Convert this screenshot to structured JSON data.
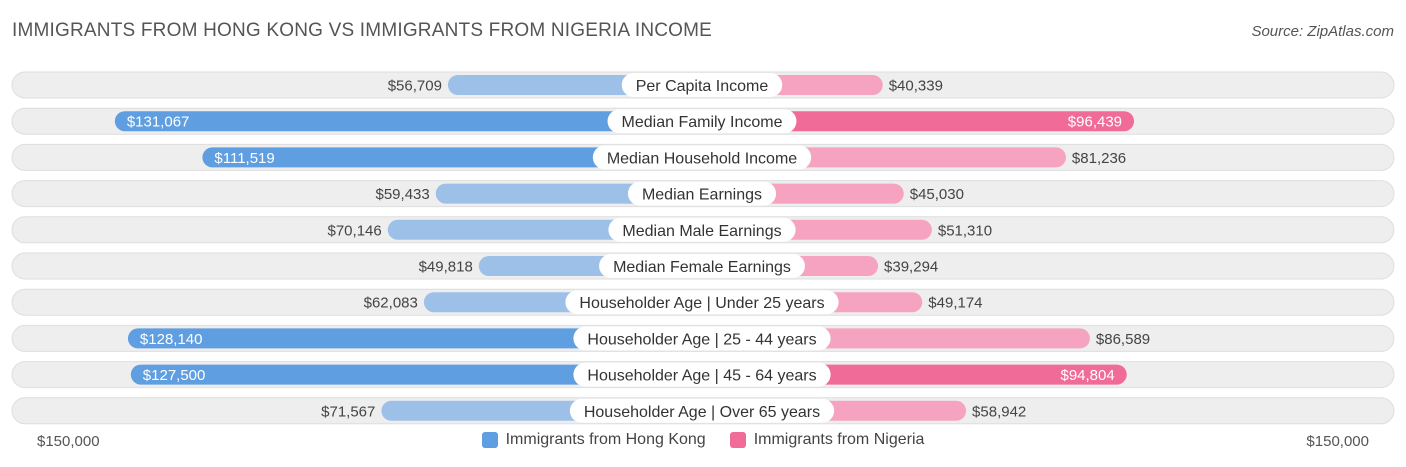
{
  "title": "IMMIGRANTS FROM HONG KONG VS IMMIGRANTS FROM NIGERIA INCOME",
  "source": "Source: ZipAtlas.com",
  "axis": {
    "left_label": "$150,000",
    "right_label": "$150,000"
  },
  "legend": {
    "left": "Immigrants from Hong Kong",
    "right": "Immigrants from Nigeria"
  },
  "colors": {
    "left_light": "#9dc0e8",
    "left_dark": "#5f9ee0",
    "right_light": "#f5a3c0",
    "right_dark": "#f06b98",
    "row_bg": "#eeeeee",
    "row_border": "#dedede"
  },
  "chart_data": {
    "type": "bar",
    "orientation": "horizontal-diverging",
    "max": 150000,
    "categories": [
      "Per Capita Income",
      "Median Family Income",
      "Median Household Income",
      "Median Earnings",
      "Median Male Earnings",
      "Median Female Earnings",
      "Householder Age | Under 25 years",
      "Householder Age | 25 - 44 years",
      "Householder Age | 45 - 64 years",
      "Householder Age | Over 65 years"
    ],
    "series": [
      {
        "name": "Immigrants from Hong Kong",
        "values": [
          56709,
          131067,
          111519,
          59433,
          70146,
          49818,
          62083,
          128140,
          127500,
          71567
        ],
        "labels": [
          "$56,709",
          "$131,067",
          "$111,519",
          "$59,433",
          "$70,146",
          "$49,818",
          "$62,083",
          "$128,140",
          "$127,500",
          "$71,567"
        ]
      },
      {
        "name": "Immigrants from Nigeria",
        "values": [
          40339,
          96439,
          81236,
          45030,
          51310,
          39294,
          49174,
          86589,
          94804,
          58942
        ],
        "labels": [
          "$40,339",
          "$96,439",
          "$81,236",
          "$45,030",
          "$51,310",
          "$39,294",
          "$49,174",
          "$86,589",
          "$94,804",
          "$58,942"
        ]
      }
    ]
  }
}
